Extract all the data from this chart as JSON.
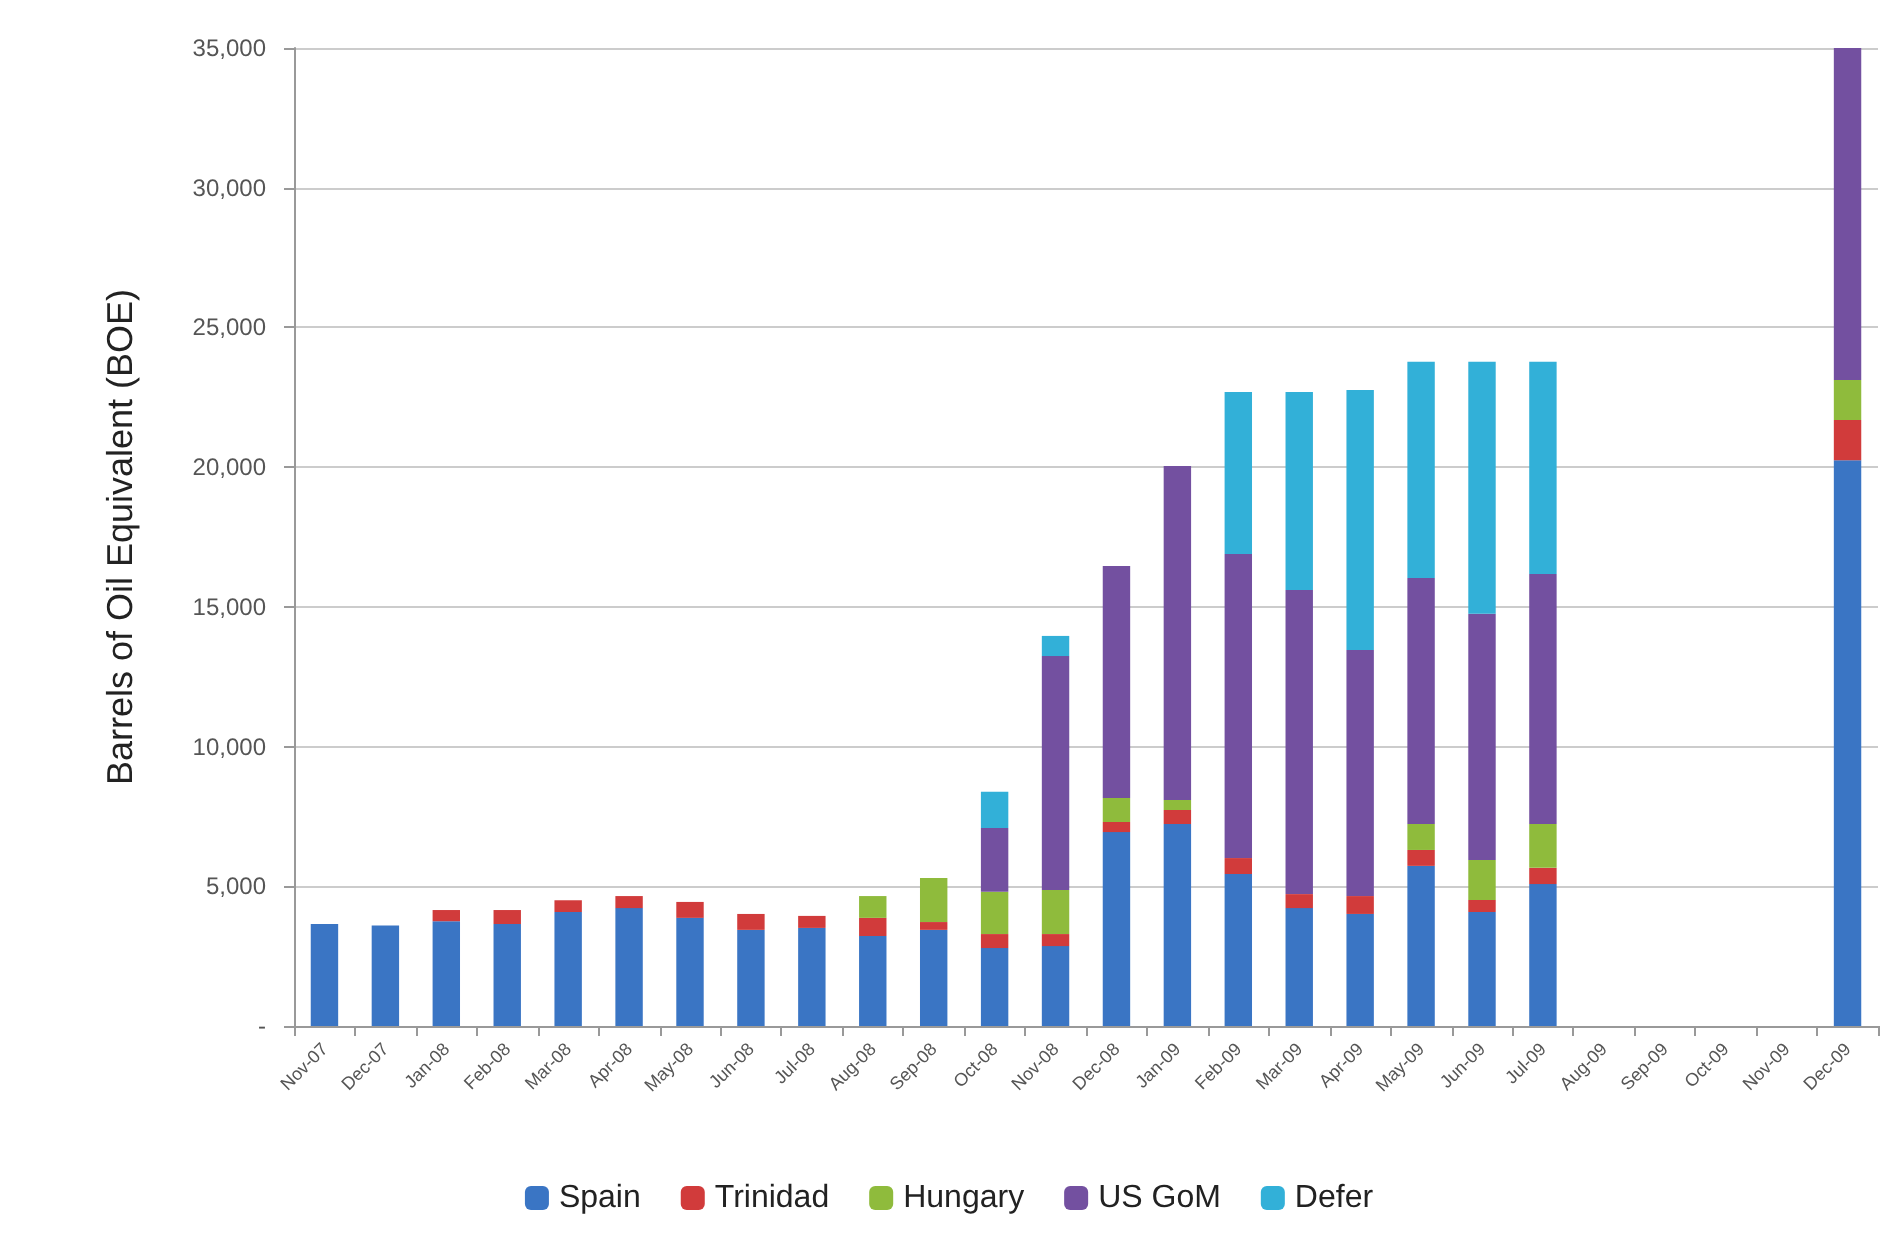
{
  "chart_data": {
    "type": "bar",
    "stacked": true,
    "ylabel": "Barrels of Oil Equivalent (BOE)",
    "categories": [
      "Nov-07",
      "Dec-07",
      "Jan-08",
      "Feb-08",
      "Mar-08",
      "Apr-08",
      "May-08",
      "Jun-08",
      "Jul-08",
      "Aug-08",
      "Sep-08",
      "Oct-08",
      "Nov-08",
      "Dec-08",
      "Jan-09",
      "Feb-09",
      "Mar-09",
      "Apr-09",
      "May-09",
      "Jun-09",
      "Jul-09",
      "Aug-09",
      "Sep-09",
      "Oct-09",
      "Nov-09",
      "Dec-09"
    ],
    "series": [
      {
        "name": "Spain",
        "color": "#3a75c4",
        "values": [
          3650,
          3600,
          3750,
          3650,
          4080,
          4220,
          3870,
          3440,
          3510,
          3220,
          3440,
          2790,
          2860,
          6940,
          7230,
          5440,
          4220,
          4010,
          5730,
          4080,
          5080,
          null,
          null,
          null,
          null,
          20250
        ]
      },
      {
        "name": "Trinidad",
        "color": "#d13b3b",
        "values": [
          null,
          null,
          400,
          500,
          420,
          430,
          570,
          570,
          430,
          650,
          280,
          500,
          430,
          360,
          500,
          570,
          500,
          640,
          570,
          430,
          580,
          null,
          null,
          null,
          null,
          1440
        ]
      },
      {
        "name": "Hungary",
        "color": "#8fbb3c",
        "values": [
          null,
          null,
          null,
          null,
          null,
          null,
          null,
          null,
          null,
          780,
          1580,
          1510,
          1580,
          860,
          360,
          null,
          null,
          null,
          930,
          1430,
          1570,
          null,
          null,
          null,
          null,
          1430
        ]
      },
      {
        "name": "US GoM",
        "color": "#7350a0",
        "values": [
          null,
          null,
          null,
          null,
          null,
          null,
          null,
          null,
          null,
          null,
          null,
          2290,
          8370,
          8300,
          11950,
          10880,
          10880,
          8810,
          8800,
          8810,
          8950,
          null,
          null,
          null,
          null,
          11880
        ]
      },
      {
        "name": "Defer",
        "color": "#32b0d8",
        "values": [
          null,
          null,
          null,
          null,
          null,
          null,
          null,
          null,
          null,
          null,
          null,
          1290,
          720,
          null,
          null,
          5800,
          7090,
          9300,
          7740,
          9020,
          7590,
          null,
          null,
          null,
          null,
          null
        ]
      }
    ],
    "ylim": [
      0,
      35000
    ],
    "yticks": [
      {
        "value": 0,
        "label": "-"
      },
      {
        "value": 5000,
        "label": "5,000"
      },
      {
        "value": 10000,
        "label": "10,000"
      },
      {
        "value": 15000,
        "label": "15,000"
      },
      {
        "value": 20000,
        "label": "20,000"
      },
      {
        "value": 25000,
        "label": "25,000"
      },
      {
        "value": 30000,
        "label": "30,000"
      },
      {
        "value": 35000,
        "label": "35,000"
      }
    ],
    "grid": "y",
    "legend": "bottom"
  }
}
